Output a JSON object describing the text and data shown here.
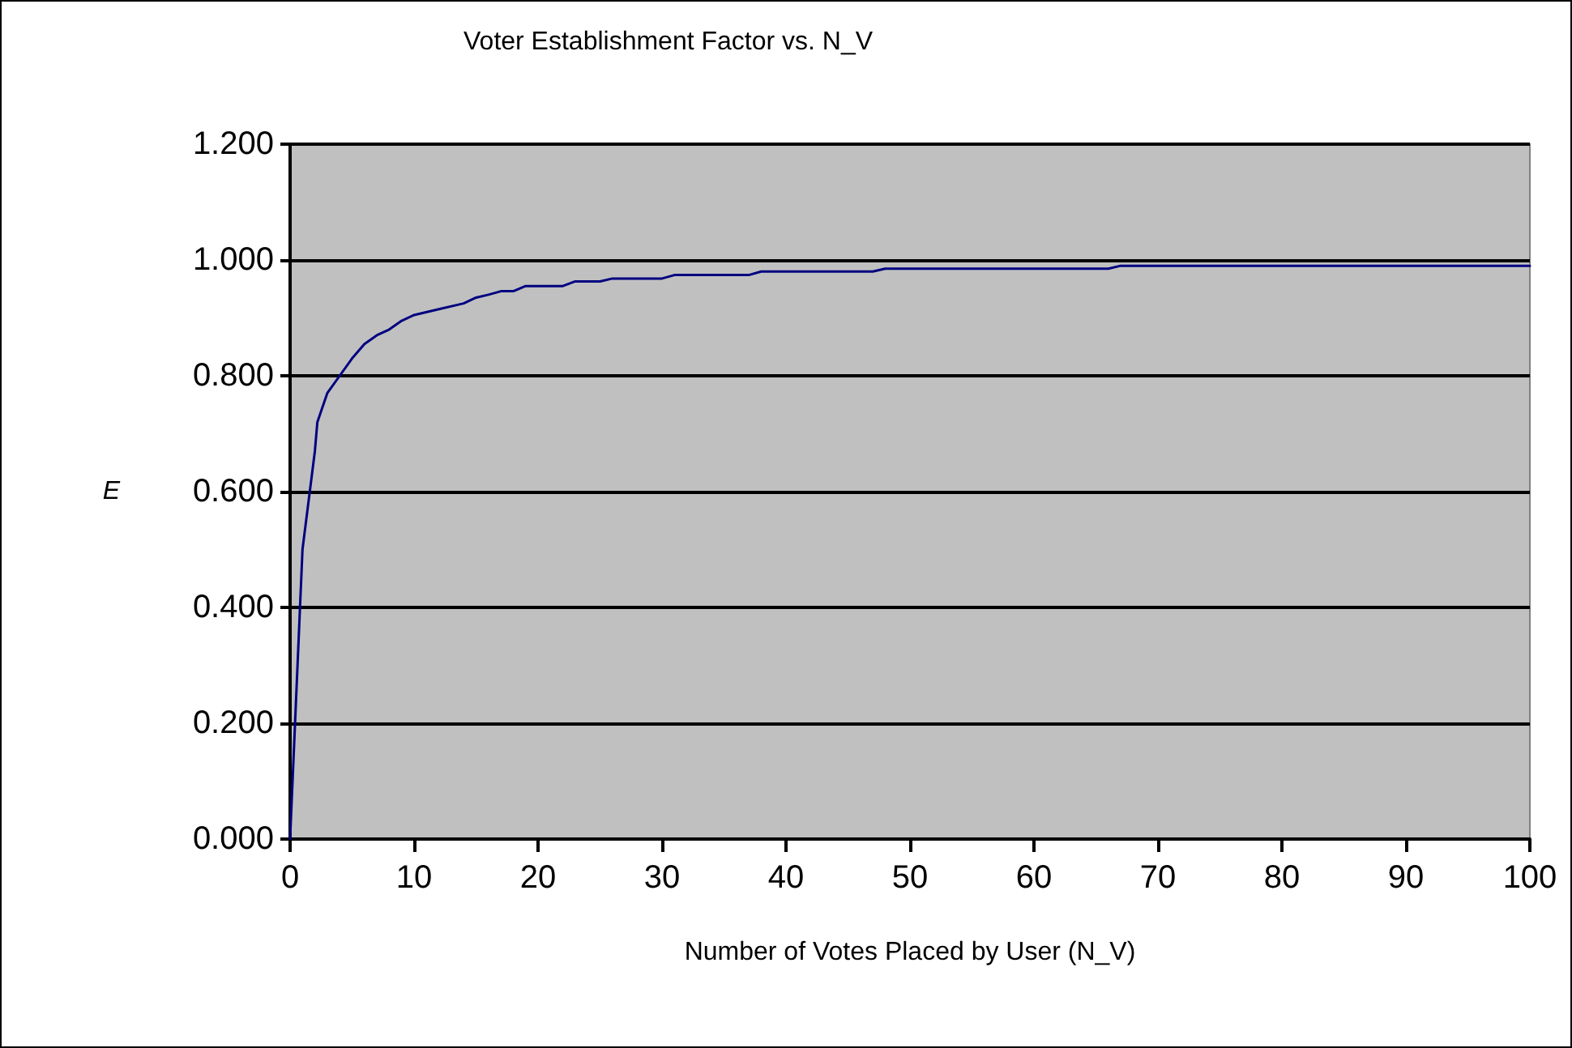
{
  "chart_data": {
    "type": "line",
    "title": "Voter Establishment Factor vs. N_V",
    "xlabel": "Number of Votes Placed by User (N_V)",
    "ylabel": "E",
    "x": [
      0,
      1,
      2,
      2.2,
      3,
      4,
      5,
      6,
      7,
      8,
      9,
      10,
      12,
      14,
      15,
      16,
      17,
      18,
      19,
      20,
      22,
      23,
      25,
      26,
      30,
      31,
      37,
      38,
      47,
      48,
      66,
      67,
      100
    ],
    "series": [
      {
        "color": "#000080",
        "values": [
          0,
          0.5,
          0.67,
          0.72,
          0.77,
          0.8,
          0.83,
          0.855,
          0.87,
          0.88,
          0.895,
          0.905,
          0.915,
          0.925,
          0.935,
          0.94,
          0.946,
          0.946,
          0.955,
          0.955,
          0.955,
          0.963,
          0.963,
          0.968,
          0.968,
          0.974,
          0.974,
          0.98,
          0.98,
          0.985,
          0.985,
          0.99,
          0.99
        ]
      }
    ],
    "xlim": [
      0,
      100
    ],
    "xticks": [
      0,
      10,
      20,
      30,
      40,
      50,
      60,
      70,
      80,
      90,
      100
    ],
    "ylim": [
      0,
      1.2
    ],
    "yticks": [
      {
        "value": 0,
        "label": "0.000"
      },
      {
        "value": 0.2,
        "label": "0.200"
      },
      {
        "value": 0.4,
        "label": "0.400"
      },
      {
        "value": 0.6,
        "label": "0.600"
      },
      {
        "value": 0.8,
        "label": "0.800"
      },
      {
        "value": 1,
        "label": "1.000"
      },
      {
        "value": 1.2,
        "label": "1.200"
      }
    ],
    "grid": "y",
    "marker": "none",
    "line_style": "solid"
  }
}
